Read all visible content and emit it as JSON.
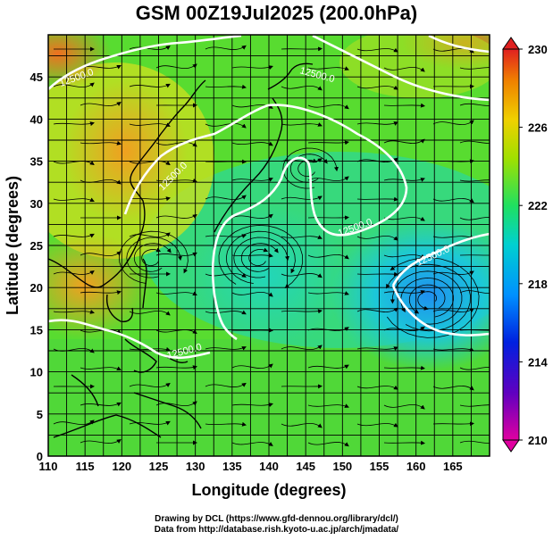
{
  "title": "GSM 00Z19Jul2025 (200.0hPa)",
  "axes": {
    "xlabel": "Longitude (degrees)",
    "ylabel": "Latitude  (degrees)",
    "x_ticks": [
      "110",
      "115",
      "120",
      "125",
      "130",
      "135",
      "140",
      "145",
      "150",
      "155",
      "160",
      "165"
    ],
    "y_ticks": [
      "0",
      "5",
      "10",
      "15",
      "20",
      "25",
      "30",
      "35",
      "40",
      "45"
    ],
    "xlim": [
      110,
      170
    ],
    "ylim": [
      0,
      50
    ]
  },
  "colorbar": {
    "tick_labels": [
      "230",
      "226",
      "222",
      "218",
      "214",
      "210"
    ],
    "range": [
      210,
      230
    ],
    "colors": [
      "#e000a0",
      "#6000c0",
      "#0020e0",
      "#0090ff",
      "#00d0d0",
      "#20e060",
      "#a0e000",
      "#f0d000",
      "#f08000",
      "#e02020"
    ]
  },
  "contour_labels": [
    "12500.0",
    "12500.0",
    "12500.0",
    "12500.0",
    "12500.0",
    "12500.0"
  ],
  "credits": {
    "line1": "Drawing by DCL (https://www.gfd-dennou.org/library/dcl/)",
    "line2": "Data from http://database.rish.kyoto-u.ac.jp/arch/jmadata/"
  },
  "chart_data": {
    "type": "heatmap",
    "title": "GSM 00Z19Jul2025 (200.0hPa)",
    "xlabel": "Longitude (degrees)",
    "ylabel": "Latitude  (degrees)",
    "xlim": [
      110,
      170
    ],
    "ylim": [
      0,
      50
    ],
    "colorbar_range": [
      210,
      230
    ],
    "contour_value": 12500.0,
    "grid": true
  }
}
